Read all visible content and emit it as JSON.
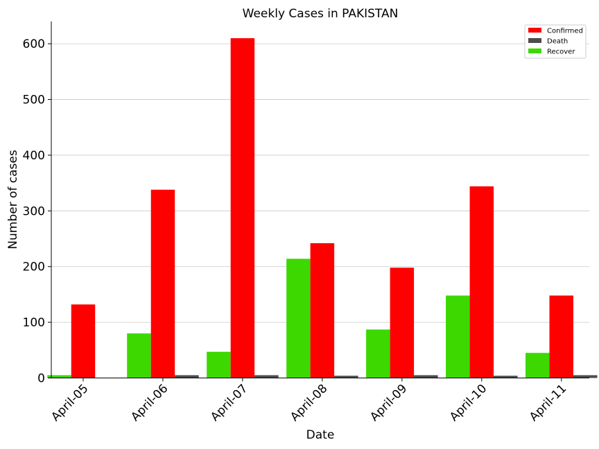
{
  "chart_data": {
    "type": "bar",
    "title": "Weekly Cases in PAKISTAN",
    "xlabel": "Date",
    "ylabel": "Number of cases",
    "categories": [
      "April-05",
      "April-06",
      "April-07",
      "April-08",
      "April-09",
      "April-10",
      "April-11"
    ],
    "series": [
      {
        "name": "Recover",
        "color": "#3cd800",
        "values": [
          5,
          80,
          47,
          214,
          87,
          148,
          45
        ]
      },
      {
        "name": "Confirmed",
        "color": "#ff0000",
        "values": [
          132,
          338,
          610,
          242,
          198,
          344,
          148
        ]
      },
      {
        "name": "Death",
        "color": "#4c4c4c",
        "values": [
          0,
          5,
          5,
          4,
          5,
          4,
          5
        ]
      }
    ],
    "legend_order": [
      "Confirmed",
      "Death",
      "Recover"
    ],
    "legend_position": "top-right",
    "ylim": [
      0,
      640
    ],
    "yticks": [
      0,
      100,
      200,
      300,
      400,
      500,
      600
    ],
    "grid": "horizontal"
  }
}
